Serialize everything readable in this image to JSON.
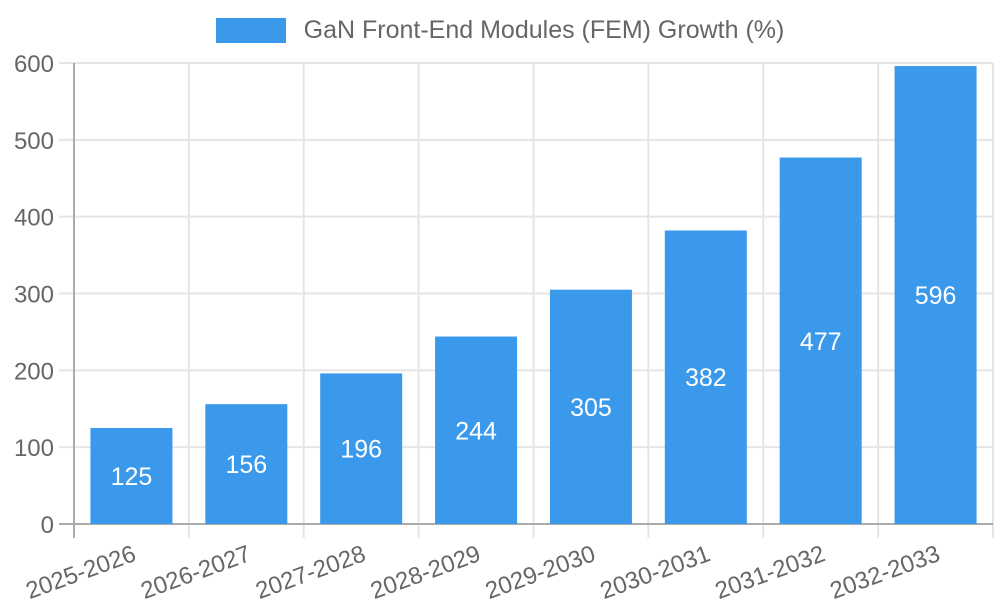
{
  "legend": {
    "label": "GaN Front-End Modules (FEM) Growth (%)"
  },
  "chart_data": {
    "type": "bar",
    "title": "",
    "series_name": "GaN Front-End Modules (FEM) Growth (%)",
    "categories": [
      "2025-2026",
      "2026-2027",
      "2027-2028",
      "2028-2029",
      "2029-2030",
      "2030-2031",
      "2031-2032",
      "2032-2033"
    ],
    "values": [
      125,
      156,
      196,
      244,
      305,
      382,
      477,
      596
    ],
    "value_labels_shown": true,
    "xlabel": "",
    "ylabel": "",
    "ylim": [
      0,
      600
    ],
    "yticks": [
      0,
      100,
      200,
      300,
      400,
      500,
      600
    ],
    "grid": true,
    "legend_position": "top",
    "x_label_rotation_deg": -20,
    "colors": {
      "bar": "#3B99EC",
      "tick_text": "#666666",
      "value_label_text": "#FFFFFF",
      "gridline": "#E5E5E5",
      "axis_line": "#ABABAB",
      "background": "#FFFFFF"
    }
  }
}
